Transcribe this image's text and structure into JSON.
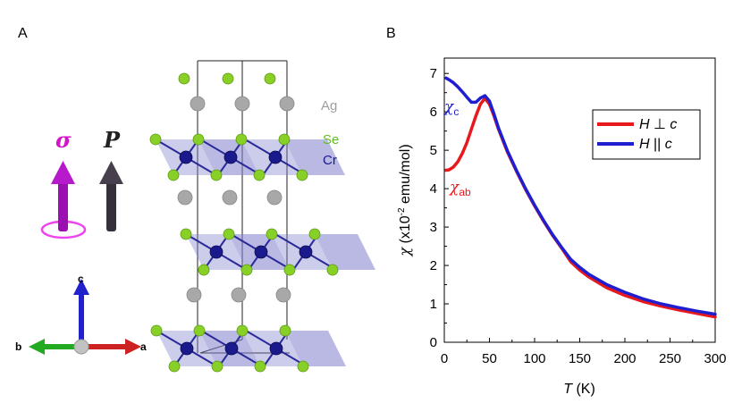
{
  "panels": {
    "a_label": "A",
    "b_label": "B"
  },
  "structure": {
    "vectors": {
      "sigma": "σ",
      "p": "P"
    },
    "elements": [
      {
        "symbol": "Ag",
        "color": "#9e9e9e"
      },
      {
        "symbol": "Se",
        "color": "#5fbf1f"
      },
      {
        "symbol": "Cr",
        "color": "#1a1a8c"
      }
    ],
    "axes": {
      "a": "a",
      "b": "b",
      "c": "c"
    },
    "colors": {
      "sigma_arrow": "#b000c8",
      "p_arrow": "#3a3440",
      "ring": "#ee44ee",
      "axis_a": "#cc2222",
      "axis_b": "#22aa22",
      "axis_c": "#2222cc",
      "octahedra": "#8080cc",
      "se_atom": "#88d028",
      "cr_atom": "#1a1a8c",
      "ag_atom": "#a8a8a8"
    }
  },
  "chart_data": {
    "type": "line",
    "xlabel_italic": "T",
    "xlabel_unit": " (K)",
    "ylabel_chi": "χ",
    "ylabel_pre": " (x10",
    "ylabel_exp": "-2",
    "ylabel_post": " emu/mol)",
    "xlim": [
      0,
      300
    ],
    "ylim": [
      0,
      7.4
    ],
    "xticks": [
      0,
      50,
      100,
      150,
      200,
      250,
      300
    ],
    "yticks": [
      0,
      1,
      2,
      3,
      4,
      5,
      6,
      7
    ],
    "grid": false,
    "legend_position": "top-right",
    "annotations": {
      "chi_c_sym": "χ",
      "chi_c_sub": "c",
      "chi_ab_sym": "χ",
      "chi_ab_sub": "ab"
    },
    "series": [
      {
        "legend_italic_1": "H",
        "legend_mid": " ⊥ ",
        "legend_italic_2": "c",
        "color": "#e8191c",
        "x": [
          2,
          5,
          10,
          15,
          20,
          25,
          30,
          35,
          40,
          45,
          50,
          55,
          60,
          70,
          80,
          90,
          100,
          110,
          120,
          130,
          140,
          150,
          160,
          180,
          200,
          220,
          240,
          260,
          280,
          300
        ],
        "y": [
          4.48,
          4.49,
          4.56,
          4.7,
          4.92,
          5.2,
          5.55,
          5.9,
          6.2,
          6.35,
          6.2,
          5.9,
          5.55,
          4.95,
          4.45,
          3.98,
          3.55,
          3.15,
          2.78,
          2.45,
          2.1,
          1.88,
          1.7,
          1.42,
          1.22,
          1.06,
          0.94,
          0.84,
          0.75,
          0.66
        ]
      },
      {
        "legend_italic_1": "H",
        "legend_mid": " || ",
        "legend_italic_2": "c",
        "color": "#1f1fd0",
        "x": [
          2,
          5,
          10,
          15,
          20,
          25,
          30,
          35,
          40,
          45,
          50,
          55,
          60,
          70,
          80,
          90,
          100,
          110,
          120,
          130,
          140,
          150,
          160,
          180,
          200,
          220,
          240,
          260,
          280,
          300
        ],
        "y": [
          6.88,
          6.84,
          6.76,
          6.65,
          6.52,
          6.38,
          6.25,
          6.25,
          6.36,
          6.42,
          6.28,
          5.95,
          5.58,
          4.98,
          4.47,
          4.0,
          3.57,
          3.17,
          2.8,
          2.47,
          2.16,
          1.95,
          1.77,
          1.5,
          1.3,
          1.13,
          1.0,
          0.9,
          0.81,
          0.73
        ]
      }
    ]
  }
}
